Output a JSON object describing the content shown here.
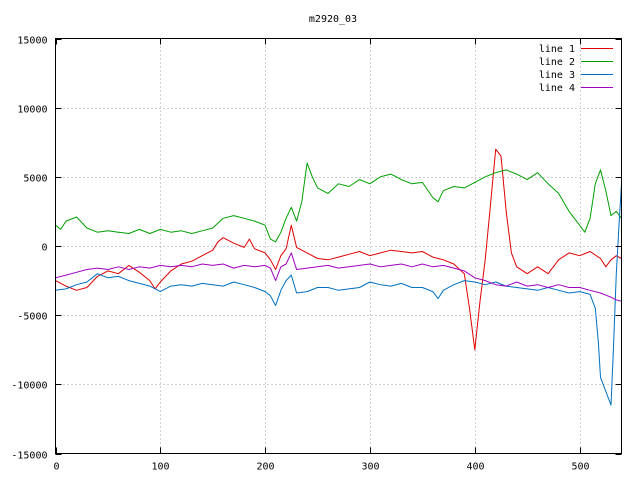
{
  "chart_data": {
    "type": "line",
    "title": "m2920_03",
    "xlim": [
      0,
      540
    ],
    "ylim": [
      -15000,
      15000
    ],
    "x_ticks": [
      0,
      100,
      200,
      300,
      400,
      500
    ],
    "y_ticks": [
      -15000,
      -10000,
      -5000,
      0,
      5000,
      10000,
      15000
    ],
    "grid": true,
    "legend_position": "top-right",
    "series": [
      {
        "name": "line 1",
        "color": "#e00000",
        "points": [
          [
            0,
            -2500
          ],
          [
            10,
            -2900
          ],
          [
            20,
            -3200
          ],
          [
            30,
            -3000
          ],
          [
            40,
            -2200
          ],
          [
            50,
            -1800
          ],
          [
            60,
            -2000
          ],
          [
            70,
            -1400
          ],
          [
            80,
            -1900
          ],
          [
            90,
            -2500
          ],
          [
            95,
            -3100
          ],
          [
            100,
            -2600
          ],
          [
            110,
            -1800
          ],
          [
            120,
            -1300
          ],
          [
            130,
            -1100
          ],
          [
            140,
            -700
          ],
          [
            150,
            -300
          ],
          [
            155,
            300
          ],
          [
            160,
            600
          ],
          [
            170,
            200
          ],
          [
            180,
            -100
          ],
          [
            185,
            500
          ],
          [
            190,
            -200
          ],
          [
            200,
            -500
          ],
          [
            205,
            -1000
          ],
          [
            210,
            -1700
          ],
          [
            215,
            -700
          ],
          [
            220,
            -200
          ],
          [
            225,
            1500
          ],
          [
            230,
            -100
          ],
          [
            240,
            -500
          ],
          [
            250,
            -900
          ],
          [
            260,
            -1000
          ],
          [
            270,
            -800
          ],
          [
            280,
            -600
          ],
          [
            290,
            -400
          ],
          [
            300,
            -700
          ],
          [
            310,
            -500
          ],
          [
            320,
            -300
          ],
          [
            330,
            -400
          ],
          [
            340,
            -500
          ],
          [
            350,
            -400
          ],
          [
            360,
            -800
          ],
          [
            370,
            -1000
          ],
          [
            380,
            -1300
          ],
          [
            390,
            -2000
          ],
          [
            395,
            -4500
          ],
          [
            400,
            -7500
          ],
          [
            405,
            -4000
          ],
          [
            410,
            -1000
          ],
          [
            415,
            3000
          ],
          [
            420,
            7000
          ],
          [
            425,
            6500
          ],
          [
            430,
            2500
          ],
          [
            435,
            -500
          ],
          [
            440,
            -1500
          ],
          [
            450,
            -2000
          ],
          [
            460,
            -1500
          ],
          [
            470,
            -2000
          ],
          [
            480,
            -1000
          ],
          [
            490,
            -500
          ],
          [
            500,
            -700
          ],
          [
            510,
            -400
          ],
          [
            520,
            -900
          ],
          [
            525,
            -1500
          ],
          [
            530,
            -1000
          ],
          [
            535,
            -700
          ],
          [
            540,
            -900
          ]
        ]
      },
      {
        "name": "line 2",
        "color": "#00a000",
        "points": [
          [
            0,
            1500
          ],
          [
            5,
            1200
          ],
          [
            10,
            1800
          ],
          [
            20,
            2100
          ],
          [
            30,
            1300
          ],
          [
            40,
            1000
          ],
          [
            50,
            1100
          ],
          [
            60,
            1000
          ],
          [
            70,
            900
          ],
          [
            80,
            1200
          ],
          [
            90,
            900
          ],
          [
            100,
            1200
          ],
          [
            110,
            1000
          ],
          [
            120,
            1100
          ],
          [
            130,
            900
          ],
          [
            140,
            1100
          ],
          [
            150,
            1300
          ],
          [
            160,
            2000
          ],
          [
            170,
            2200
          ],
          [
            180,
            2000
          ],
          [
            190,
            1800
          ],
          [
            200,
            1500
          ],
          [
            205,
            500
          ],
          [
            210,
            300
          ],
          [
            215,
            1000
          ],
          [
            220,
            2000
          ],
          [
            225,
            2800
          ],
          [
            230,
            1800
          ],
          [
            235,
            3200
          ],
          [
            240,
            6000
          ],
          [
            245,
            5000
          ],
          [
            250,
            4200
          ],
          [
            260,
            3800
          ],
          [
            270,
            4500
          ],
          [
            280,
            4300
          ],
          [
            290,
            4800
          ],
          [
            300,
            4500
          ],
          [
            310,
            5000
          ],
          [
            320,
            5200
          ],
          [
            330,
            4800
          ],
          [
            340,
            4500
          ],
          [
            350,
            4600
          ],
          [
            360,
            3500
          ],
          [
            365,
            3200
          ],
          [
            370,
            4000
          ],
          [
            380,
            4300
          ],
          [
            390,
            4200
          ],
          [
            400,
            4600
          ],
          [
            410,
            5000
          ],
          [
            420,
            5300
          ],
          [
            430,
            5500
          ],
          [
            440,
            5200
          ],
          [
            450,
            4800
          ],
          [
            460,
            5300
          ],
          [
            470,
            4500
          ],
          [
            480,
            3800
          ],
          [
            490,
            2500
          ],
          [
            500,
            1500
          ],
          [
            505,
            1000
          ],
          [
            510,
            2000
          ],
          [
            515,
            4500
          ],
          [
            520,
            5500
          ],
          [
            525,
            4000
          ],
          [
            530,
            2200
          ],
          [
            535,
            2500
          ],
          [
            540,
            2000
          ]
        ]
      },
      {
        "name": "line 3",
        "color": "#0070c0",
        "points": [
          [
            0,
            -3200
          ],
          [
            10,
            -3100
          ],
          [
            20,
            -2800
          ],
          [
            30,
            -2600
          ],
          [
            40,
            -2000
          ],
          [
            50,
            -2300
          ],
          [
            60,
            -2200
          ],
          [
            70,
            -2500
          ],
          [
            80,
            -2700
          ],
          [
            90,
            -2900
          ],
          [
            100,
            -3300
          ],
          [
            110,
            -2900
          ],
          [
            120,
            -2800
          ],
          [
            130,
            -2900
          ],
          [
            140,
            -2700
          ],
          [
            150,
            -2800
          ],
          [
            160,
            -2900
          ],
          [
            170,
            -2600
          ],
          [
            180,
            -2800
          ],
          [
            190,
            -3000
          ],
          [
            200,
            -3300
          ],
          [
            205,
            -3600
          ],
          [
            210,
            -4300
          ],
          [
            215,
            -3200
          ],
          [
            220,
            -2500
          ],
          [
            225,
            -2100
          ],
          [
            230,
            -3400
          ],
          [
            240,
            -3300
          ],
          [
            250,
            -3000
          ],
          [
            260,
            -3000
          ],
          [
            270,
            -3200
          ],
          [
            280,
            -3100
          ],
          [
            290,
            -3000
          ],
          [
            300,
            -2600
          ],
          [
            310,
            -2800
          ],
          [
            320,
            -2900
          ],
          [
            330,
            -2700
          ],
          [
            340,
            -3000
          ],
          [
            350,
            -3000
          ],
          [
            360,
            -3300
          ],
          [
            365,
            -3800
          ],
          [
            370,
            -3200
          ],
          [
            380,
            -2800
          ],
          [
            390,
            -2500
          ],
          [
            400,
            -2600
          ],
          [
            410,
            -2800
          ],
          [
            420,
            -2600
          ],
          [
            430,
            -2900
          ],
          [
            440,
            -3000
          ],
          [
            450,
            -3100
          ],
          [
            460,
            -3200
          ],
          [
            470,
            -3000
          ],
          [
            480,
            -3200
          ],
          [
            490,
            -3400
          ],
          [
            500,
            -3300
          ],
          [
            510,
            -3500
          ],
          [
            515,
            -4500
          ],
          [
            518,
            -7000
          ],
          [
            520,
            -9500
          ],
          [
            525,
            -10500
          ],
          [
            530,
            -11500
          ],
          [
            532,
            -8000
          ],
          [
            535,
            -2000
          ],
          [
            538,
            2000
          ],
          [
            540,
            4500
          ]
        ]
      },
      {
        "name": "line 4",
        "color": "#a000c0",
        "points": [
          [
            0,
            -2300
          ],
          [
            10,
            -2100
          ],
          [
            20,
            -1900
          ],
          [
            30,
            -1700
          ],
          [
            40,
            -1600
          ],
          [
            50,
            -1700
          ],
          [
            60,
            -1500
          ],
          [
            70,
            -1700
          ],
          [
            80,
            -1500
          ],
          [
            90,
            -1600
          ],
          [
            100,
            -1400
          ],
          [
            110,
            -1500
          ],
          [
            120,
            -1400
          ],
          [
            130,
            -1500
          ],
          [
            140,
            -1300
          ],
          [
            150,
            -1400
          ],
          [
            160,
            -1300
          ],
          [
            170,
            -1600
          ],
          [
            180,
            -1400
          ],
          [
            190,
            -1500
          ],
          [
            200,
            -1400
          ],
          [
            205,
            -1600
          ],
          [
            210,
            -2500
          ],
          [
            215,
            -1500
          ],
          [
            220,
            -1300
          ],
          [
            225,
            -500
          ],
          [
            230,
            -1700
          ],
          [
            240,
            -1600
          ],
          [
            250,
            -1500
          ],
          [
            260,
            -1400
          ],
          [
            270,
            -1600
          ],
          [
            280,
            -1500
          ],
          [
            290,
            -1400
          ],
          [
            300,
            -1300
          ],
          [
            310,
            -1500
          ],
          [
            320,
            -1400
          ],
          [
            330,
            -1300
          ],
          [
            340,
            -1500
          ],
          [
            350,
            -1300
          ],
          [
            360,
            -1500
          ],
          [
            370,
            -1400
          ],
          [
            380,
            -1600
          ],
          [
            390,
            -1800
          ],
          [
            400,
            -2300
          ],
          [
            410,
            -2500
          ],
          [
            420,
            -2800
          ],
          [
            430,
            -2900
          ],
          [
            440,
            -2600
          ],
          [
            450,
            -2900
          ],
          [
            460,
            -2800
          ],
          [
            470,
            -3000
          ],
          [
            480,
            -2800
          ],
          [
            490,
            -3000
          ],
          [
            500,
            -3000
          ],
          [
            510,
            -3200
          ],
          [
            520,
            -3400
          ],
          [
            530,
            -3700
          ],
          [
            535,
            -3900
          ],
          [
            540,
            -4000
          ]
        ]
      }
    ]
  }
}
